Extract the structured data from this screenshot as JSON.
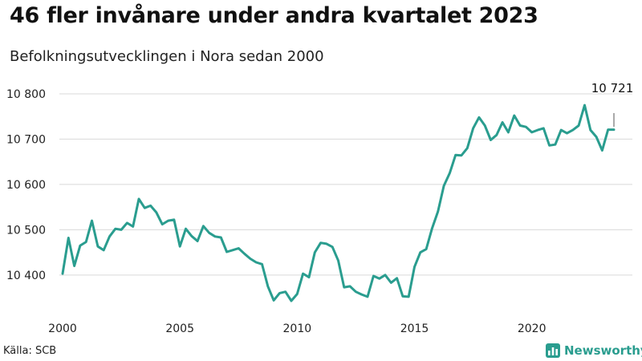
{
  "title": "46 fler invånare under andra kvartalet 2023",
  "subtitle": "Befolkningsutvecklingen i Nora sedan 2000",
  "source": "Källa: SCB",
  "brand": {
    "name": "Newsworthy",
    "icon": "bar-chart-logo-icon"
  },
  "colors": {
    "line": "#2a9d8f",
    "grid": "#d9d9d9",
    "brand": "#2a9d8f"
  },
  "chart_data": {
    "type": "line",
    "title": "46 fler invånare under andra kvartalet 2023",
    "subtitle": "Befolkningsutvecklingen i Nora sedan 2000",
    "xlabel": "",
    "ylabel": "",
    "xlim": [
      2000,
      2023.5
    ],
    "ylim": [
      10320,
      10830
    ],
    "x_ticks": [
      2000,
      2005,
      2010,
      2015,
      2020
    ],
    "x_tick_labels": [
      "2000",
      "2005",
      "2010",
      "2015",
      "2020"
    ],
    "y_ticks": [
      10400,
      10500,
      10600,
      10700,
      10800
    ],
    "y_tick_labels": [
      "10 400",
      "10 500",
      "10 600",
      "10 700",
      "10 800"
    ],
    "grid": true,
    "annotation": {
      "text": "10 721",
      "x": 2023.5,
      "y": 10721
    },
    "x": [
      2000.0,
      2000.25,
      2000.5,
      2000.75,
      2001.0,
      2001.25,
      2001.5,
      2001.75,
      2002.0,
      2002.25,
      2002.5,
      2002.75,
      2003.0,
      2003.25,
      2003.5,
      2003.75,
      2004.0,
      2004.25,
      2004.5,
      2004.75,
      2005.0,
      2005.25,
      2005.5,
      2005.75,
      2006.0,
      2006.25,
      2006.5,
      2006.75,
      2007.0,
      2007.25,
      2007.5,
      2007.75,
      2008.0,
      2008.25,
      2008.5,
      2008.75,
      2009.0,
      2009.25,
      2009.5,
      2009.75,
      2010.0,
      2010.25,
      2010.5,
      2010.75,
      2011.0,
      2011.25,
      2011.5,
      2011.75,
      2012.0,
      2012.25,
      2012.5,
      2012.75,
      2013.0,
      2013.25,
      2013.5,
      2013.75,
      2014.0,
      2014.25,
      2014.5,
      2014.75,
      2015.0,
      2015.25,
      2015.5,
      2015.75,
      2016.0,
      2016.25,
      2016.5,
      2016.75,
      2017.0,
      2017.25,
      2017.5,
      2017.75,
      2018.0,
      2018.25,
      2018.5,
      2018.75,
      2019.0,
      2019.25,
      2019.5,
      2019.75,
      2020.0,
      2020.25,
      2020.5,
      2020.75,
      2021.0,
      2021.25,
      2021.5,
      2021.75,
      2022.0,
      2022.25,
      2022.5,
      2022.75,
      2023.0,
      2023.25,
      2023.5
    ],
    "series": [
      {
        "values": [
          10403,
          10482,
          10420,
          10465,
          10473,
          10520,
          10463,
          10455,
          10485,
          10502,
          10500,
          10515,
          10507,
          10568,
          10548,
          10553,
          10538,
          10512,
          10520,
          10522,
          10463,
          10502,
          10486,
          10475,
          10508,
          10493,
          10485,
          10483,
          10451,
          10455,
          10459,
          10447,
          10436,
          10428,
          10424,
          10375,
          10344,
          10360,
          10363,
          10343,
          10358,
          10403,
          10395,
          10450,
          10471,
          10469,
          10462,
          10432,
          10373,
          10375,
          10363,
          10357,
          10352,
          10398,
          10392,
          10400,
          10383,
          10393,
          10353,
          10352,
          10418,
          10450,
          10457,
          10503,
          10540,
          10597,
          10625,
          10665,
          10664,
          10680,
          10724,
          10748,
          10730,
          10698,
          10709,
          10737,
          10715,
          10752,
          10730,
          10727,
          10715,
          10720,
          10724,
          10686,
          10688,
          10720,
          10713,
          10720,
          10730,
          10775,
          10720,
          10705,
          10675,
          10721,
          10721
        ]
      }
    ]
  }
}
